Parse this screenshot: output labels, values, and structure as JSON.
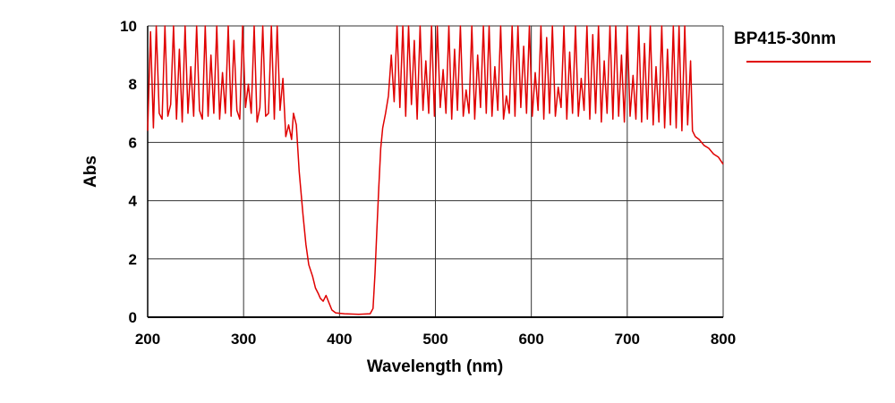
{
  "chart_data": {
    "type": "line",
    "title": "",
    "xlabel": "Wavelength (nm)",
    "ylabel": "Abs",
    "xlim": [
      200,
      800
    ],
    "ylim": [
      0,
      10
    ],
    "xticks": [
      200,
      300,
      400,
      500,
      600,
      700,
      800
    ],
    "yticks": [
      0,
      2,
      4,
      6,
      8,
      10
    ],
    "grid": true,
    "legend": "right",
    "series": [
      {
        "name": "BP415-30nm",
        "color": "#e00000",
        "x": [
          200,
          203,
          206,
          209,
          212,
          215,
          218,
          221,
          224,
          227,
          230,
          233,
          236,
          239,
          242,
          245,
          248,
          251,
          254,
          257,
          260,
          263,
          266,
          269,
          272,
          275,
          278,
          281,
          284,
          287,
          290,
          293,
          296,
          299,
          302,
          305,
          308,
          311,
          314,
          317,
          320,
          323,
          326,
          329,
          332,
          335,
          338,
          341,
          344,
          347,
          350,
          352,
          355,
          358,
          362,
          365,
          368,
          372,
          375,
          378,
          380,
          383,
          386,
          389,
          392,
          396,
          405,
          420,
          432,
          435,
          437,
          439,
          441,
          443,
          445,
          448,
          451,
          454,
          457,
          460,
          463,
          466,
          469,
          472,
          475,
          478,
          481,
          484,
          487,
          490,
          493,
          496,
          499,
          502,
          505,
          508,
          511,
          514,
          517,
          520,
          523,
          526,
          529,
          532,
          535,
          538,
          541,
          544,
          547,
          550,
          553,
          556,
          559,
          562,
          565,
          568,
          571,
          574,
          577,
          580,
          583,
          586,
          589,
          592,
          595,
          598,
          601,
          604,
          607,
          610,
          613,
          616,
          619,
          622,
          625,
          628,
          631,
          634,
          637,
          640,
          643,
          646,
          649,
          652,
          655,
          658,
          661,
          664,
          667,
          670,
          673,
          676,
          679,
          682,
          685,
          688,
          691,
          694,
          697,
          700,
          703,
          706,
          709,
          712,
          715,
          718,
          721,
          724,
          727,
          730,
          733,
          736,
          739,
          742,
          745,
          748,
          751,
          754,
          757,
          760,
          763,
          766,
          768,
          771,
          775,
          780,
          785,
          790,
          795,
          800
        ],
        "y": [
          6.4,
          9.8,
          6.5,
          10,
          7.0,
          6.8,
          10,
          6.9,
          7.3,
          10,
          6.8,
          9.2,
          6.7,
          10,
          7.0,
          8.6,
          6.9,
          10,
          7.1,
          6.8,
          10,
          6.9,
          9.0,
          7.0,
          10,
          6.8,
          8.4,
          7.0,
          10,
          6.9,
          9.5,
          7.1,
          6.8,
          10,
          7.2,
          8.0,
          7.0,
          10,
          6.7,
          7.2,
          10,
          6.9,
          7.0,
          10,
          6.8,
          10,
          7.1,
          8.2,
          6.2,
          6.6,
          6.1,
          7.0,
          6.6,
          5.0,
          3.5,
          2.5,
          1.8,
          1.4,
          1.0,
          0.8,
          0.65,
          0.55,
          0.75,
          0.5,
          0.25,
          0.15,
          0.12,
          0.1,
          0.12,
          0.3,
          1.5,
          3.0,
          4.5,
          5.8,
          6.5,
          7.0,
          7.6,
          9.0,
          7.4,
          10,
          7.2,
          10,
          6.9,
          10,
          7.3,
          9.5,
          6.8,
          10,
          7.1,
          8.8,
          7.0,
          10,
          6.9,
          10,
          7.2,
          8.5,
          7.0,
          10,
          6.8,
          9.2,
          7.1,
          10,
          6.9,
          7.8,
          7.0,
          10,
          6.8,
          9.0,
          7.2,
          10,
          7.0,
          10,
          6.9,
          8.6,
          7.1,
          10,
          6.8,
          7.6,
          7.0,
          10,
          6.9,
          10,
          7.2,
          9.3,
          7.0,
          10,
          6.9,
          8.4,
          7.1,
          10,
          6.8,
          9.6,
          7.0,
          10,
          6.9,
          7.9,
          7.2,
          10,
          6.8,
          9.1,
          7.0,
          10,
          6.9,
          8.2,
          7.1,
          10,
          6.8,
          9.7,
          7.0,
          10,
          6.7,
          8.8,
          7.0,
          10,
          6.8,
          10,
          6.9,
          9.0,
          6.7,
          10,
          6.9,
          8.3,
          6.8,
          10,
          6.7,
          9.4,
          6.8,
          10,
          6.6,
          8.6,
          6.7,
          10,
          6.5,
          9.2,
          6.6,
          10,
          6.5,
          10,
          6.4,
          10,
          6.6,
          8.8,
          6.4,
          6.2,
          6.1,
          5.9,
          5.8,
          5.6,
          5.5,
          5.25
        ]
      }
    ]
  }
}
